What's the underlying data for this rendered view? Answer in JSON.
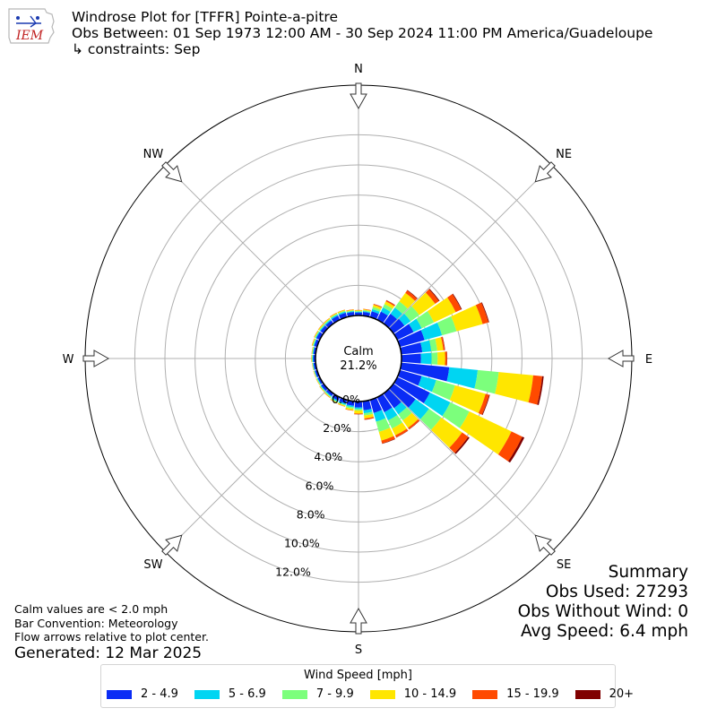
{
  "header": {
    "title": "Windrose Plot for [TFFR] Pointe-a-pitre",
    "subtitle": "Obs Between: 01 Sep 1973 12:00 AM - 30 Sep 2024 11:00 PM America/Guadeloupe",
    "constraints": "↳ constraints: Sep",
    "logo_text": "IEM"
  },
  "footer": {
    "calm_note": "Calm values are < 2.0 mph",
    "bar_convention": "Bar Convention: Meteorology",
    "flow_note": "Flow arrows relative to plot center.",
    "generated": "Generated: 12 Mar 2025"
  },
  "summary": {
    "title": "Summary",
    "obs_used": "Obs Used: 27293",
    "obs_without_wind": "Obs Without Wind: 0",
    "avg_speed": "Avg Speed: 6.4 mph"
  },
  "legend": {
    "title": "Wind Speed [mph]",
    "items": [
      {
        "label": "2 - 4.9",
        "color": "#0a2cf5"
      },
      {
        "label": "5 - 6.9",
        "color": "#00d5f2"
      },
      {
        "label": "7 - 9.9",
        "color": "#7cff7c"
      },
      {
        "label": "10 - 14.9",
        "color": "#ffe600"
      },
      {
        "label": "15 - 19.9",
        "color": "#ff4a00"
      },
      {
        "label": "20+",
        "color": "#800000"
      }
    ]
  },
  "chart_data": {
    "type": "windrose",
    "calm_label": "Calm",
    "calm_value": "21.2%",
    "radial_ticks": [
      "0.0%",
      "2.0%",
      "4.0%",
      "6.0%",
      "8.0%",
      "10.0%",
      "12.0%"
    ],
    "radial_values": [
      0,
      2,
      4,
      6,
      8,
      10,
      12
    ],
    "rmax": 12.5,
    "directions_labels": [
      "N",
      "NE",
      "E",
      "SE",
      "S",
      "SW",
      "W",
      "NW"
    ],
    "bins": [
      "2 - 4.9",
      "5 - 6.9",
      "7 - 9.9",
      "10 - 14.9",
      "15 - 19.9",
      "20+"
    ],
    "sectors": [
      {
        "dir": 0,
        "values": [
          0.2,
          0.05,
          0.05,
          0.05,
          0.02,
          0
        ]
      },
      {
        "dir": 10,
        "values": [
          0.25,
          0.06,
          0.06,
          0.06,
          0.03,
          0
        ]
      },
      {
        "dir": 20,
        "values": [
          0.4,
          0.15,
          0.15,
          0.15,
          0.05,
          0.01
        ]
      },
      {
        "dir": 30,
        "values": [
          0.6,
          0.3,
          0.25,
          0.2,
          0.08,
          0.02
        ]
      },
      {
        "dir": 40,
        "values": [
          0.8,
          0.5,
          0.5,
          0.7,
          0.2,
          0.04
        ]
      },
      {
        "dir": 50,
        "values": [
          0.9,
          0.5,
          0.7,
          1.3,
          0.3,
          0.06
        ]
      },
      {
        "dir": 60,
        "values": [
          1.2,
          0.6,
          0.9,
          1.6,
          0.4,
          0.05
        ]
      },
      {
        "dir": 70,
        "values": [
          1.7,
          1.2,
          1.0,
          1.8,
          0.4,
          0.05
        ]
      },
      {
        "dir": 80,
        "values": [
          1.4,
          0.6,
          0.4,
          0.4,
          0.1,
          0.02
        ]
      },
      {
        "dir": 90,
        "values": [
          1.3,
          0.7,
          0.4,
          0.5,
          0.12,
          0.02
        ]
      },
      {
        "dir": 100,
        "values": [
          3.2,
          1.9,
          1.4,
          2.3,
          0.6,
          0.1
        ]
      },
      {
        "dir": 110,
        "values": [
          1.5,
          1.0,
          1.3,
          2.1,
          0.25,
          0.05
        ]
      },
      {
        "dir": 120,
        "values": [
          2.4,
          1.5,
          1.4,
          3.1,
          0.8,
          0.15
        ]
      },
      {
        "dir": 130,
        "values": [
          1.8,
          1.1,
          1.0,
          1.7,
          0.5,
          0.1
        ]
      },
      {
        "dir": 140,
        "values": [
          1.2,
          0.5,
          0.5,
          0.6,
          0.12,
          0.02
        ]
      },
      {
        "dir": 150,
        "values": [
          1.1,
          0.6,
          0.6,
          0.5,
          0.15,
          0.02
        ]
      },
      {
        "dir": 160,
        "values": [
          0.9,
          0.6,
          0.7,
          0.6,
          0.2,
          0.03
        ]
      },
      {
        "dir": 170,
        "values": [
          0.6,
          0.2,
          0.15,
          0.2,
          0.08,
          0.01
        ]
      },
      {
        "dir": 180,
        "values": [
          0.4,
          0.1,
          0.1,
          0.2,
          0.05,
          0.01
        ]
      },
      {
        "dir": 190,
        "values": [
          0.3,
          0.1,
          0.1,
          0.1,
          0.03,
          0
        ]
      },
      {
        "dir": 200,
        "values": [
          0.25,
          0.08,
          0.06,
          0.06,
          0.02,
          0
        ]
      },
      {
        "dir": 210,
        "values": [
          0.25,
          0.08,
          0.06,
          0.05,
          0.02,
          0
        ]
      },
      {
        "dir": 220,
        "values": [
          0.2,
          0.06,
          0.05,
          0.05,
          0.02,
          0
        ]
      },
      {
        "dir": 230,
        "values": [
          0.2,
          0.05,
          0.04,
          0.04,
          0.01,
          0
        ]
      },
      {
        "dir": 240,
        "values": [
          0.15,
          0.05,
          0.04,
          0.03,
          0.01,
          0
        ]
      },
      {
        "dir": 250,
        "values": [
          0.15,
          0.04,
          0.03,
          0.03,
          0.01,
          0
        ]
      },
      {
        "dir": 260,
        "values": [
          0.15,
          0.04,
          0.03,
          0.02,
          0.01,
          0
        ]
      },
      {
        "dir": 270,
        "values": [
          0.15,
          0.05,
          0.04,
          0.03,
          0.01,
          0
        ]
      },
      {
        "dir": 280,
        "values": [
          0.15,
          0.05,
          0.04,
          0.03,
          0.01,
          0
        ]
      },
      {
        "dir": 290,
        "values": [
          0.2,
          0.05,
          0.05,
          0.05,
          0.02,
          0
        ]
      },
      {
        "dir": 300,
        "values": [
          0.25,
          0.06,
          0.05,
          0.05,
          0.02,
          0
        ]
      },
      {
        "dir": 310,
        "values": [
          0.25,
          0.06,
          0.06,
          0.06,
          0.02,
          0
        ]
      },
      {
        "dir": 320,
        "values": [
          0.25,
          0.07,
          0.06,
          0.06,
          0.02,
          0
        ]
      },
      {
        "dir": 330,
        "values": [
          0.3,
          0.08,
          0.06,
          0.06,
          0.02,
          0
        ]
      },
      {
        "dir": 340,
        "values": [
          0.3,
          0.08,
          0.06,
          0.06,
          0.02,
          0
        ]
      },
      {
        "dir": 350,
        "values": [
          0.25,
          0.06,
          0.05,
          0.05,
          0.02,
          0
        ]
      }
    ]
  }
}
